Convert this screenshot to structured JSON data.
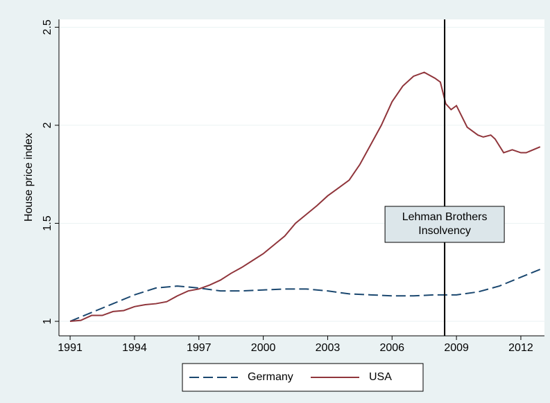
{
  "chart_data": {
    "type": "line",
    "y_label": "House price index",
    "xlim": [
      1990.48,
      2013.1
    ],
    "ylim": [
      0.926,
      2.54
    ],
    "xticks": [
      1991,
      1994,
      1997,
      2000,
      2003,
      2006,
      2009,
      2012
    ],
    "yticks": [
      1,
      1.5,
      2,
      2.5
    ],
    "grid": true,
    "legend": "bottom",
    "vline": 2008.45,
    "annotation": [
      "Lehman Brothers",
      "Insolvency"
    ],
    "series": [
      {
        "name": "Germany",
        "color": "#1a476f",
        "dash": true,
        "x": [
          1991,
          1992,
          1993,
          1994,
          1995,
          1996,
          1997,
          1998,
          1999,
          2000,
          2001,
          2002,
          2003,
          2004,
          2005,
          2006,
          2007,
          2008,
          2009,
          2010,
          2011,
          2012,
          2012.9
        ],
        "values": [
          1.0,
          1.045,
          1.09,
          1.135,
          1.17,
          1.18,
          1.17,
          1.155,
          1.155,
          1.16,
          1.165,
          1.165,
          1.155,
          1.14,
          1.135,
          1.13,
          1.13,
          1.135,
          1.135,
          1.15,
          1.18,
          1.225,
          1.265
        ]
      },
      {
        "name": "USA",
        "color": "#90353b",
        "dash": false,
        "x": [
          1991,
          1991.5,
          1992,
          1992.5,
          1993,
          1993.5,
          1994,
          1994.5,
          1995,
          1995.5,
          1996,
          1996.5,
          1997,
          1997.5,
          1998,
          1998.5,
          1999,
          1999.5,
          2000,
          2000.5,
          2001,
          2001.5,
          2002,
          2002.5,
          2003,
          2003.5,
          2004,
          2004.5,
          2005,
          2005.5,
          2006,
          2006.5,
          2007,
          2007.5,
          2008,
          2008.25,
          2008.5,
          2008.75,
          2009,
          2009.5,
          2010,
          2010.25,
          2010.6,
          2010.8,
          2011.2,
          2011.6,
          2012,
          2012.25,
          2012.9
        ],
        "values": [
          1.0,
          1.005,
          1.03,
          1.03,
          1.05,
          1.055,
          1.075,
          1.085,
          1.09,
          1.1,
          1.13,
          1.155,
          1.165,
          1.185,
          1.21,
          1.245,
          1.275,
          1.31,
          1.345,
          1.39,
          1.435,
          1.5,
          1.545,
          1.59,
          1.64,
          1.68,
          1.72,
          1.8,
          1.9,
          2.0,
          2.12,
          2.2,
          2.25,
          2.27,
          2.24,
          2.22,
          2.11,
          2.08,
          2.1,
          1.99,
          1.95,
          1.94,
          1.95,
          1.93,
          1.86,
          1.875,
          1.86,
          1.86,
          1.89
        ]
      }
    ]
  }
}
